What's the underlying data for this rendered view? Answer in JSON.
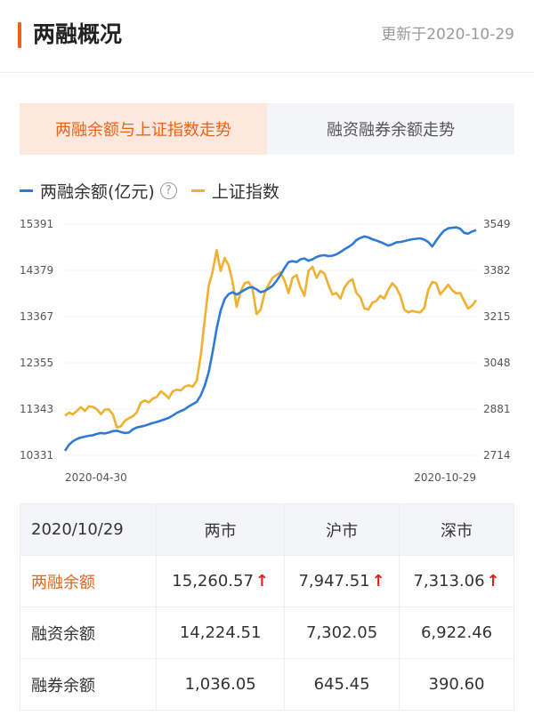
{
  "header": {
    "title": "两融概况",
    "updated": "更新于2020-10-29"
  },
  "tabs": [
    {
      "label": "两融余额与上证指数走势",
      "active": true
    },
    {
      "label": "融资融券余额走势",
      "active": false
    }
  ],
  "legend": {
    "series1": "两融余额(亿元)",
    "help_icon": "?",
    "series2": "上证指数"
  },
  "colors": {
    "accent": "#e8641b",
    "blue": "#2f7ad6",
    "gold": "#f0b030",
    "up_arrow": "#e02020"
  },
  "chart_data": {
    "type": "line",
    "x_start": "2020-04-30",
    "x_end": "2020-10-29",
    "y_left_ticks": [
      "15391",
      "14379",
      "13367",
      "12355",
      "11343",
      "10331"
    ],
    "y_right_ticks": [
      "3549",
      "3382",
      "3215",
      "3048",
      "2881",
      "2714"
    ],
    "y_left_range": [
      10331,
      15391
    ],
    "y_right_range": [
      2714,
      3549
    ],
    "series": [
      {
        "name": "两融余额(亿元)",
        "axis": "left",
        "values": [
          10430,
          10560,
          10640,
          10690,
          10720,
          10740,
          10760,
          10770,
          10800,
          10820,
          10810,
          10830,
          10860,
          10870,
          10840,
          10820,
          10830,
          10900,
          10940,
          10960,
          10980,
          11010,
          11040,
          11060,
          11090,
          11120,
          11150,
          11200,
          11260,
          11300,
          11340,
          11400,
          11450,
          11500,
          11640,
          11850,
          12150,
          12600,
          13100,
          13500,
          13750,
          13860,
          13900,
          13850,
          13900,
          13950,
          14000,
          14010,
          13960,
          13900,
          13930,
          13980,
          14040,
          14150,
          14280,
          14430,
          14560,
          14580,
          14560,
          14620,
          14640,
          14590,
          14620,
          14670,
          14700,
          14710,
          14690,
          14700,
          14730,
          14780,
          14840,
          14890,
          14950,
          15040,
          15090,
          15120,
          15100,
          15060,
          15030,
          15000,
          14960,
          14920,
          14950,
          14990,
          15000,
          15020,
          15040,
          15060,
          15070,
          15080,
          15050,
          15000,
          14900,
          15030,
          15150,
          15250,
          15300,
          15310,
          15320,
          15290,
          15200,
          15180,
          15230,
          15261
        ]
      },
      {
        "name": "上证指数",
        "axis": "right",
        "values": [
          2857,
          2868,
          2862,
          2875,
          2888,
          2874,
          2891,
          2889,
          2880,
          2863,
          2879,
          2880,
          2862,
          2815,
          2819,
          2839,
          2848,
          2855,
          2869,
          2904,
          2912,
          2905,
          2919,
          2925,
          2945,
          2935,
          2920,
          2945,
          2951,
          2948,
          2962,
          2967,
          2962,
          2983,
          3072,
          3203,
          3325,
          3379,
          3455,
          3380,
          3427,
          3400,
          3340,
          3250,
          3305,
          3335,
          3340,
          3315,
          3224,
          3240,
          3300,
          3330,
          3355,
          3365,
          3375,
          3345,
          3300,
          3355,
          3365,
          3320,
          3290,
          3380,
          3395,
          3355,
          3380,
          3370,
          3330,
          3295,
          3300,
          3280,
          3320,
          3340,
          3350,
          3300,
          3285,
          3245,
          3240,
          3265,
          3272,
          3290,
          3280,
          3312,
          3335,
          3320,
          3290,
          3240,
          3230,
          3236,
          3232,
          3230,
          3246,
          3312,
          3340,
          3336,
          3295,
          3312,
          3330,
          3310,
          3299,
          3300,
          3272,
          3244,
          3255,
          3274
        ]
      }
    ],
    "x_ticks": [
      "2020-04-30",
      "2020-10-29"
    ]
  },
  "table": {
    "headers": [
      "2020/10/29",
      "两市",
      "沪市",
      "深市"
    ],
    "rows": [
      {
        "label": "两融余额",
        "values": [
          "15,260.57",
          "7,947.51",
          "7,313.06"
        ],
        "arrow": "↑",
        "highlight": true
      },
      {
        "label": "融资余额",
        "values": [
          "14,224.51",
          "7,302.05",
          "6,922.46"
        ],
        "highlight": false
      },
      {
        "label": "融券余额",
        "values": [
          "1,036.05",
          "645.45",
          "390.60"
        ],
        "highlight": false
      }
    ]
  }
}
